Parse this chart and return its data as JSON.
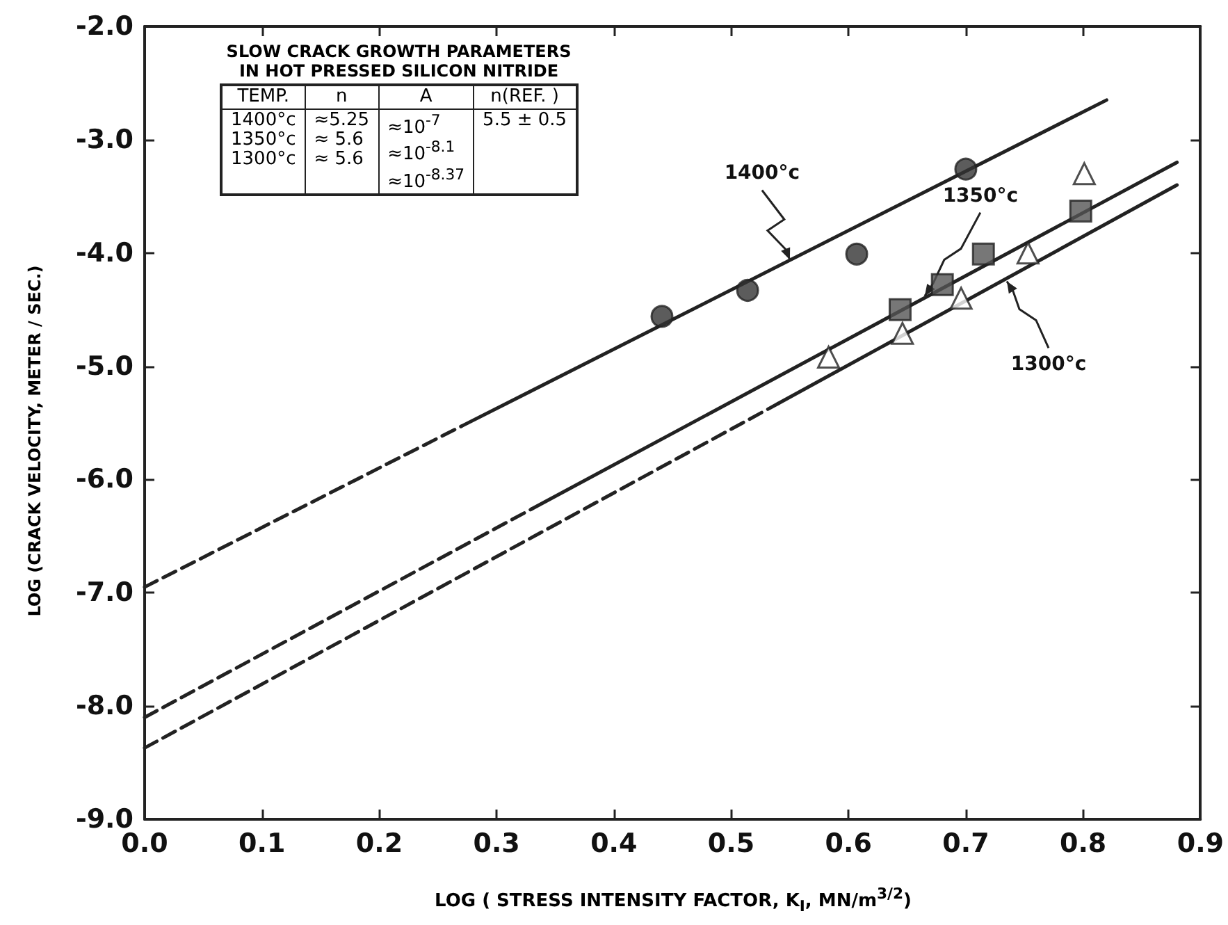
{
  "chart_data": [
    {
      "type": "scatter",
      "xlabel": "LOG ( STRESS INTENSITY FACTOR, K$_{I}$, MN/m$^{3/2}$)",
      "ylabel": "LOG (CRACK VELOCITY, METER / SEC.)",
      "xlim": [
        0,
        0.9
      ],
      "ylim": [
        -9,
        -2
      ],
      "xticks": [
        {
          "value": 0,
          "label": "0.0"
        },
        {
          "value": 0.1,
          "label": "0.1"
        },
        {
          "value": 0.2,
          "label": "0.2"
        },
        {
          "value": 0.3,
          "label": "0.3"
        },
        {
          "value": 0.4,
          "label": "0.4"
        },
        {
          "value": 0.5,
          "label": "0.5"
        },
        {
          "value": 0.6,
          "label": "0.6"
        },
        {
          "value": 0.7,
          "label": "0.7"
        },
        {
          "value": 0.8,
          "label": "0.8"
        },
        {
          "value": 0.9,
          "label": "0.9"
        }
      ],
      "yticks": [
        {
          "value": -9,
          "label": "-9.0"
        },
        {
          "value": -8,
          "label": "-8.0"
        },
        {
          "value": -7,
          "label": "-7.0"
        },
        {
          "value": -6,
          "label": "-6.0"
        },
        {
          "value": -5,
          "label": "-5.0"
        },
        {
          "value": -4,
          "label": "-4.0"
        },
        {
          "value": -3,
          "label": "-3.0"
        },
        {
          "value": -2,
          "label": "-2.0"
        }
      ],
      "grid": false,
      "series": [
        {
          "type": "line",
          "color": "#222222",
          "line_style": "dashed",
          "marker": "none",
          "x": [
            0,
            0.27
          ],
          "values": [
            -6.95,
            -5.53
          ]
        },
        {
          "type": "line",
          "color": "#222222",
          "line_style": "solid",
          "marker": "none",
          "x": [
            0.27,
            0.82
          ],
          "values": [
            -5.53,
            -2.65
          ]
        },
        {
          "type": "line",
          "color": "#222222",
          "line_style": "dashed",
          "marker": "none",
          "x": [
            0,
            0.33
          ],
          "values": [
            -8.1,
            -6.26
          ]
        },
        {
          "type": "line",
          "color": "#222222",
          "line_style": "solid",
          "marker": "none",
          "x": [
            0.33,
            0.88
          ],
          "values": [
            -6.26,
            -3.2
          ]
        },
        {
          "type": "line",
          "color": "#222222",
          "line_style": "dashed",
          "marker": "none",
          "x": [
            0,
            0.54
          ],
          "values": [
            -8.37,
            -5.33
          ]
        },
        {
          "type": "line",
          "color": "#222222",
          "line_style": "solid",
          "marker": "none",
          "x": [
            0.54,
            0.88
          ],
          "values": [
            -5.33,
            -3.4
          ]
        },
        {
          "color": "#333333",
          "marker": "circle",
          "x": [
            0.441,
            0.514,
            0.607,
            0.7
          ],
          "values": [
            -4.56,
            -4.33,
            -4.01,
            -3.26
          ]
        },
        {
          "color": "#555555",
          "marker": "square",
          "x": [
            0.644,
            0.68,
            0.715,
            0.798
          ],
          "values": [
            -4.5,
            -4.28,
            -4.01,
            -3.63
          ]
        },
        {
          "color": "#ffffff",
          "marker": "triangle",
          "x": [
            0.583,
            0.646,
            0.696,
            0.753,
            0.801
          ],
          "values": [
            -4.92,
            -4.71,
            -4.4,
            -4.0,
            -3.3
          ]
        }
      ],
      "annotations": [
        {
          "text": "1400°c",
          "x": 0.55,
          "y": -4.06
        },
        {
          "text": "1350°c",
          "x": 0.665,
          "y": -4.38
        },
        {
          "text": "1300°c",
          "x": 0.735,
          "y": -4.25
        }
      ]
    },
    {
      "type": "other",
      "title": "SLOW CRACK GROWTH PARAMETERS\nIN HOT PRESSED SILICON NITRIDE",
      "annotations": [
        "TEMP.",
        "n",
        "A",
        "n(REF.  )",
        "1400°c\n1350°c\n1300°c",
        "≈5.25\n≈ 5.6\n≈ 5.6",
        "≈10$^{-7}$\n≈10$^{-8.1}$\n≈10$^{-8.37}$",
        "5.5 ± 0.5"
      ]
    }
  ]
}
